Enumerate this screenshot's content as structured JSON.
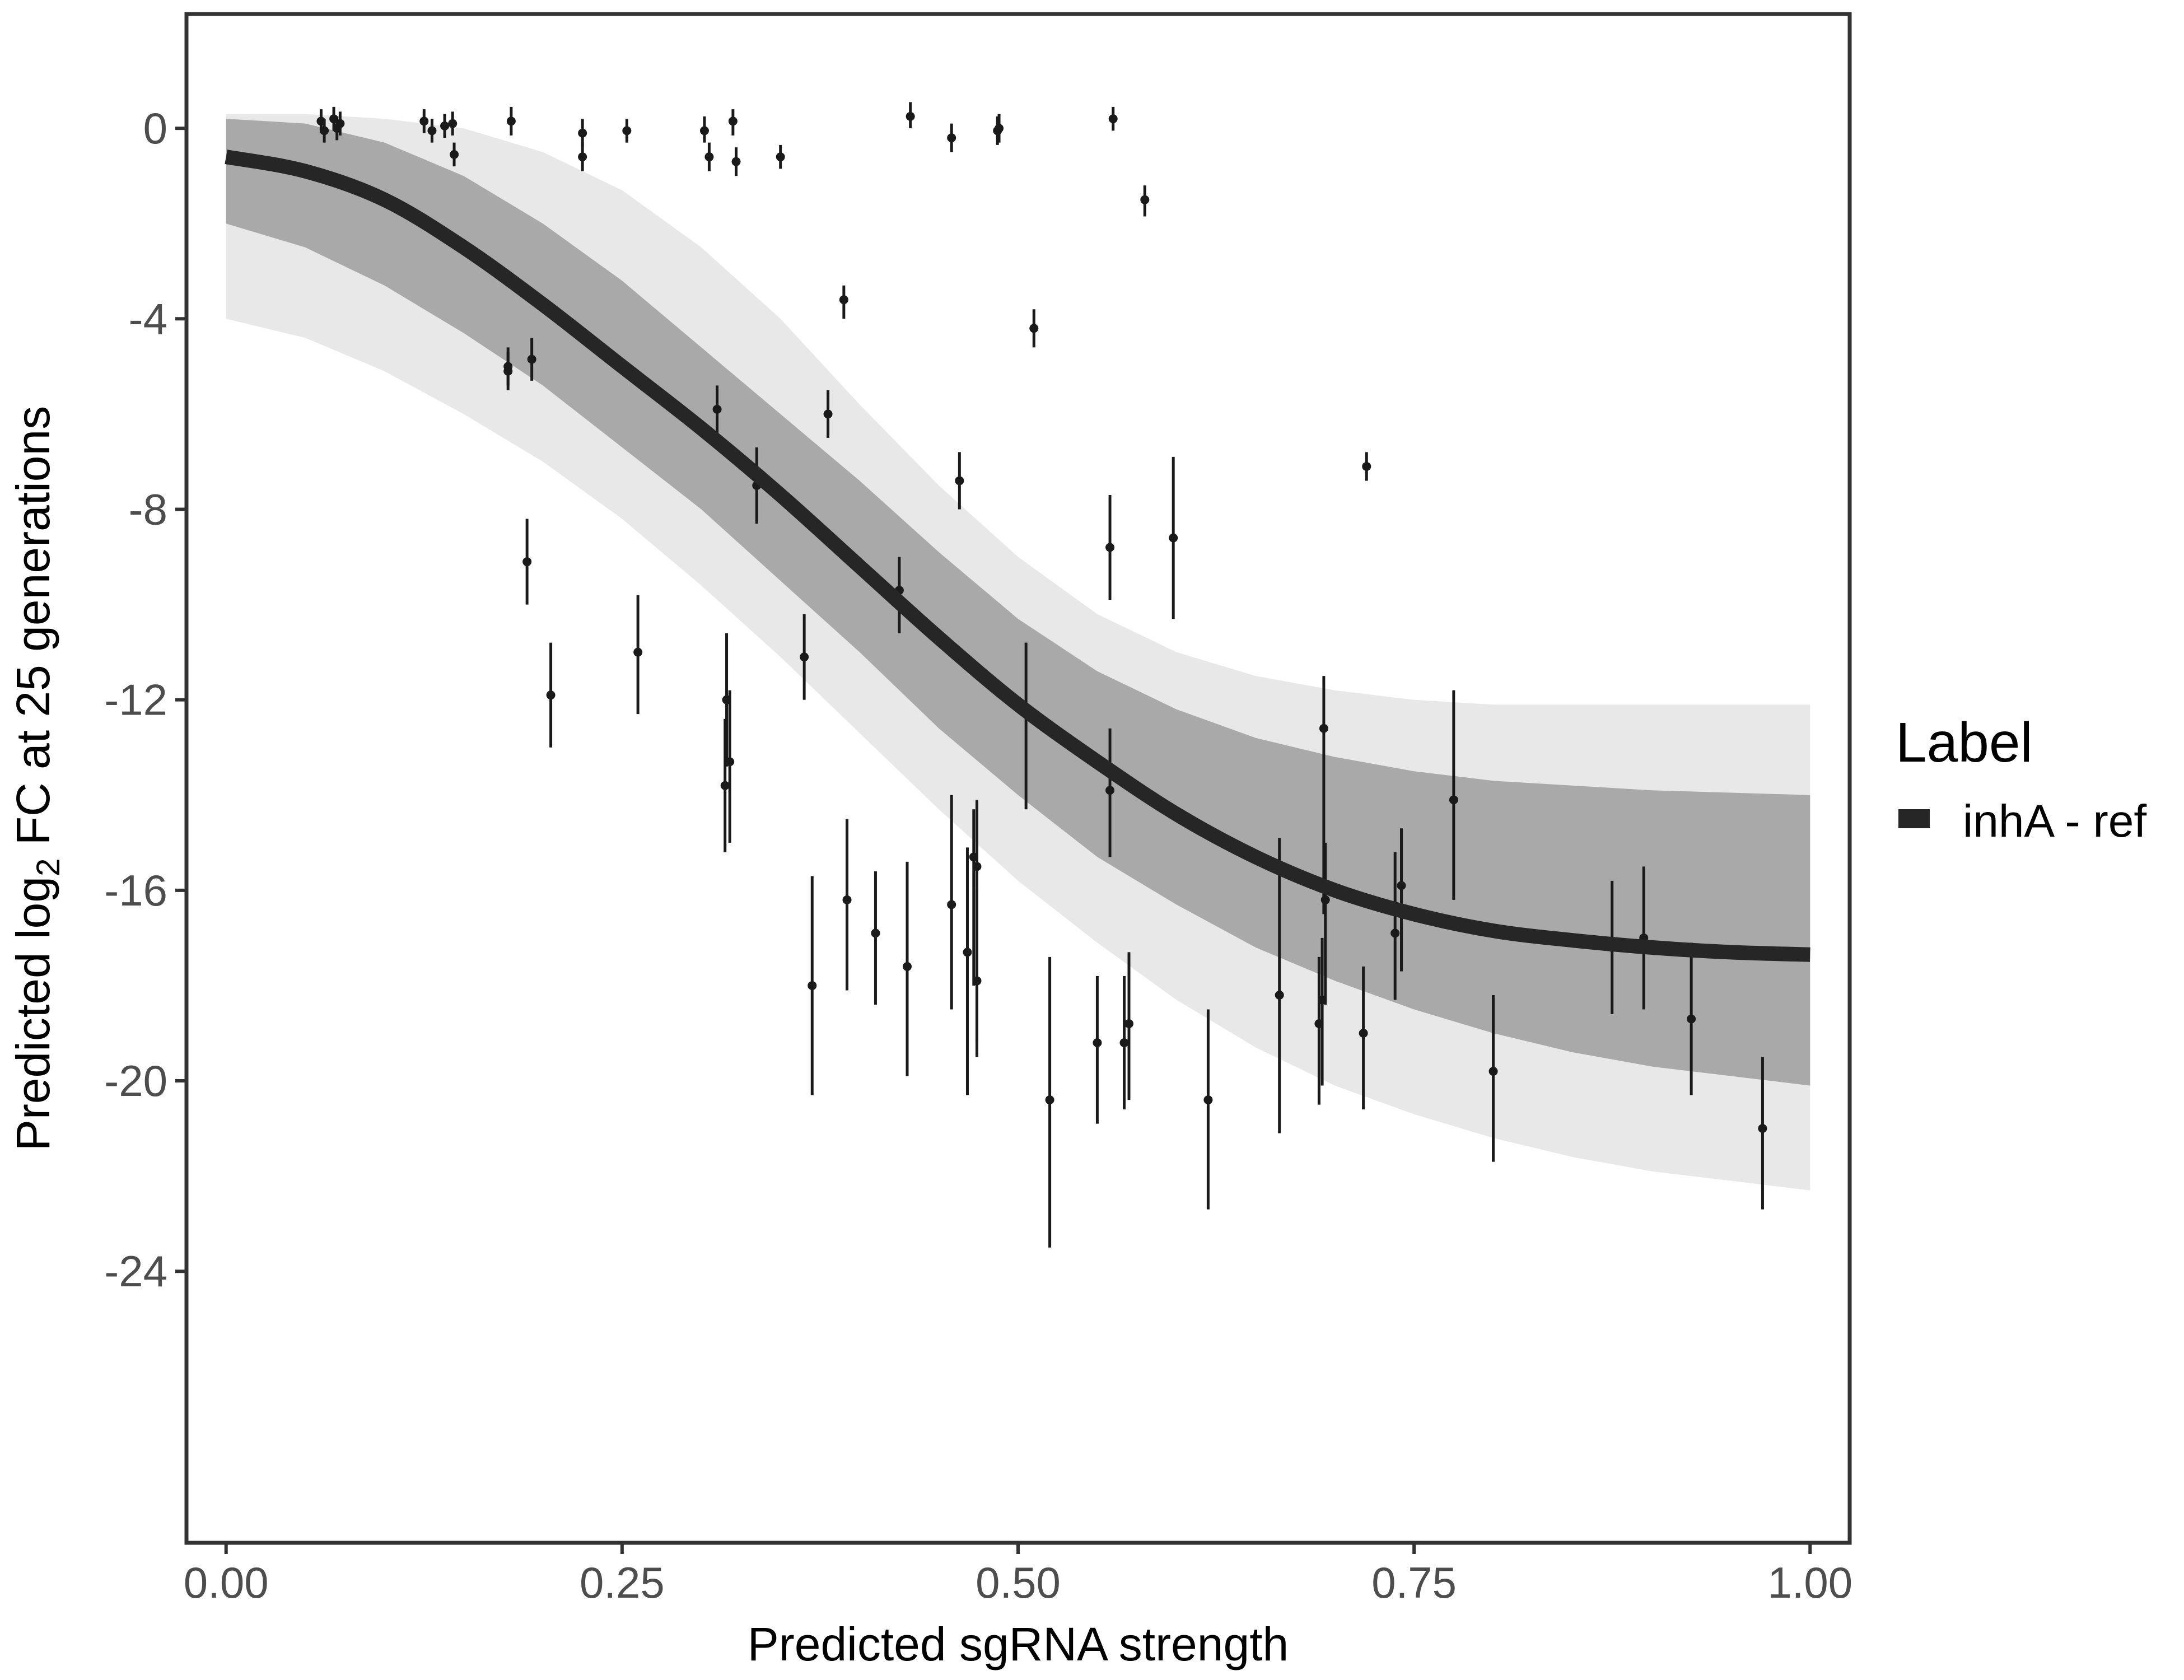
{
  "chart_data": {
    "type": "line",
    "xlabel": "Predicted sgRNA strength",
    "ylabel": {
      "prefix": "Predicted  log",
      "subscript": "2",
      "suffix": " FC at 25 generations"
    },
    "xlim": [
      -0.025,
      1.025
    ],
    "ylim": [
      -29.7,
      2.4
    ],
    "x_ticks": [
      0.0,
      0.25,
      0.5,
      0.75,
      1.0
    ],
    "x_tick_labels": [
      "0.00",
      "0.25",
      "0.50",
      "0.75",
      "1.00"
    ],
    "y_ticks": [
      0,
      -4,
      -8,
      -12,
      -16,
      -20,
      -24
    ],
    "y_tick_labels": [
      "0",
      "-4",
      "-8",
      "-12",
      "-16",
      "-20",
      "-24"
    ],
    "grid": false,
    "legend": {
      "title": "Label",
      "position": "right",
      "entries": [
        {
          "label": "inhA - ref",
          "color": "#262626"
        }
      ]
    },
    "fit_curve": {
      "name": "inhA - ref",
      "color": "#262626",
      "x": [
        0.0,
        0.05,
        0.1,
        0.15,
        0.2,
        0.25,
        0.3,
        0.35,
        0.4,
        0.45,
        0.5,
        0.55,
        0.6,
        0.65,
        0.7,
        0.75,
        0.8,
        0.85,
        0.9,
        0.95,
        1.0
      ],
      "y": [
        -0.6,
        -0.9,
        -1.5,
        -2.5,
        -3.7,
        -5.0,
        -6.3,
        -7.7,
        -9.2,
        -10.7,
        -12.1,
        -13.3,
        -14.4,
        -15.3,
        -16.0,
        -16.5,
        -16.85,
        -17.05,
        -17.2,
        -17.3,
        -17.35
      ]
    },
    "ribbon": {
      "color": "#a9a9a9",
      "x": [
        0.0,
        0.05,
        0.1,
        0.15,
        0.2,
        0.25,
        0.3,
        0.35,
        0.4,
        0.45,
        0.5,
        0.55,
        0.6,
        0.65,
        0.7,
        0.75,
        0.8,
        0.85,
        0.9,
        0.95,
        1.0
      ],
      "upper": [
        0.2,
        0.1,
        -0.3,
        -1.0,
        -2.0,
        -3.2,
        -4.6,
        -6.0,
        -7.4,
        -8.9,
        -10.3,
        -11.4,
        -12.2,
        -12.8,
        -13.2,
        -13.5,
        -13.7,
        -13.8,
        -13.9,
        -13.95,
        -14.0
      ],
      "lower": [
        -2.0,
        -2.5,
        -3.3,
        -4.3,
        -5.4,
        -6.7,
        -8.0,
        -9.5,
        -11.0,
        -12.6,
        -14.0,
        -15.3,
        -16.3,
        -17.2,
        -17.9,
        -18.5,
        -19.0,
        -19.4,
        -19.7,
        -19.9,
        -20.1
      ],
      "faint_upper": [
        0.3,
        0.3,
        0.2,
        0.0,
        -0.5,
        -1.3,
        -2.5,
        -4.0,
        -5.8,
        -7.5,
        -9.0,
        -10.2,
        -11.0,
        -11.5,
        -11.8,
        -12.0,
        -12.1,
        -12.1,
        -12.1,
        -12.1,
        -12.1
      ],
      "faint_lower": [
        -4.0,
        -4.4,
        -5.1,
        -6.0,
        -7.0,
        -8.2,
        -9.6,
        -11.1,
        -12.7,
        -14.3,
        -15.8,
        -17.1,
        -18.3,
        -19.3,
        -20.1,
        -20.7,
        -21.2,
        -21.6,
        -21.9,
        -22.1,
        -22.3
      ]
    },
    "points": [
      {
        "x": 0.06,
        "y": 0.15,
        "lo": -0.1,
        "hi": 0.4
      },
      {
        "x": 0.062,
        "y": -0.05,
        "lo": -0.3,
        "hi": 0.2
      },
      {
        "x": 0.068,
        "y": 0.2,
        "lo": -0.05,
        "hi": 0.45
      },
      {
        "x": 0.07,
        "y": 0.0,
        "lo": -0.25,
        "hi": 0.25
      },
      {
        "x": 0.072,
        "y": 0.1,
        "lo": -0.15,
        "hi": 0.35
      },
      {
        "x": 0.125,
        "y": 0.15,
        "lo": -0.1,
        "hi": 0.4
      },
      {
        "x": 0.13,
        "y": -0.05,
        "lo": -0.3,
        "hi": 0.2
      },
      {
        "x": 0.138,
        "y": 0.05,
        "lo": -0.2,
        "hi": 0.3
      },
      {
        "x": 0.143,
        "y": 0.1,
        "lo": -0.15,
        "hi": 0.35
      },
      {
        "x": 0.144,
        "y": -0.55,
        "lo": -0.8,
        "hi": -0.3
      },
      {
        "x": 0.18,
        "y": 0.15,
        "lo": -0.15,
        "hi": 0.45
      },
      {
        "x": 0.178,
        "y": -5.0,
        "lo": -5.4,
        "hi": -4.6
      },
      {
        "x": 0.178,
        "y": -5.1,
        "lo": -5.5,
        "hi": -4.7
      },
      {
        "x": 0.19,
        "y": -9.1,
        "lo": -10.0,
        "hi": -8.2
      },
      {
        "x": 0.193,
        "y": -4.85,
        "lo": -5.3,
        "hi": -4.4
      },
      {
        "x": 0.205,
        "y": -11.9,
        "lo": -13.0,
        "hi": -10.8
      },
      {
        "x": 0.225,
        "y": -0.1,
        "lo": -0.4,
        "hi": 0.2
      },
      {
        "x": 0.225,
        "y": -0.6,
        "lo": -0.9,
        "hi": -0.3
      },
      {
        "x": 0.253,
        "y": -0.05,
        "lo": -0.3,
        "hi": 0.2
      },
      {
        "x": 0.26,
        "y": -11.0,
        "lo": -12.3,
        "hi": -9.8
      },
      {
        "x": 0.302,
        "y": -0.05,
        "lo": -0.3,
        "hi": 0.25
      },
      {
        "x": 0.305,
        "y": -0.6,
        "lo": -0.9,
        "hi": -0.3
      },
      {
        "x": 0.31,
        "y": -5.9,
        "lo": -6.4,
        "hi": -5.4
      },
      {
        "x": 0.316,
        "y": -12.0,
        "lo": -13.4,
        "hi": -10.6
      },
      {
        "x": 0.315,
        "y": -13.8,
        "lo": -15.2,
        "hi": -12.4
      },
      {
        "x": 0.318,
        "y": -13.3,
        "lo": -15.0,
        "hi": -11.8
      },
      {
        "x": 0.32,
        "y": 0.15,
        "lo": -0.15,
        "hi": 0.4
      },
      {
        "x": 0.322,
        "y": -0.7,
        "lo": -1.0,
        "hi": -0.4
      },
      {
        "x": 0.335,
        "y": -7.5,
        "lo": -8.3,
        "hi": -6.7
      },
      {
        "x": 0.35,
        "y": -0.6,
        "lo": -0.85,
        "hi": -0.35
      },
      {
        "x": 0.365,
        "y": -11.1,
        "lo": -12.0,
        "hi": -10.2
      },
      {
        "x": 0.37,
        "y": -18.0,
        "lo": -20.3,
        "hi": -15.7
      },
      {
        "x": 0.38,
        "y": -6.0,
        "lo": -6.5,
        "hi": -5.5
      },
      {
        "x": 0.39,
        "y": -3.6,
        "lo": -4.0,
        "hi": -3.3
      },
      {
        "x": 0.392,
        "y": -16.2,
        "lo": -18.1,
        "hi": -14.5
      },
      {
        "x": 0.41,
        "y": -16.9,
        "lo": -18.4,
        "hi": -15.6
      },
      {
        "x": 0.425,
        "y": -9.7,
        "lo": -10.6,
        "hi": -9.0
      },
      {
        "x": 0.43,
        "y": -17.6,
        "lo": -19.9,
        "hi": -15.4
      },
      {
        "x": 0.432,
        "y": 0.25,
        "lo": 0.0,
        "hi": 0.55
      },
      {
        "x": 0.458,
        "y": -0.2,
        "lo": -0.5,
        "hi": 0.1
      },
      {
        "x": 0.458,
        "y": -16.3,
        "lo": -18.5,
        "hi": -14.0
      },
      {
        "x": 0.463,
        "y": -7.4,
        "lo": -8.0,
        "hi": -6.8
      },
      {
        "x": 0.468,
        "y": -17.3,
        "lo": -20.3,
        "hi": -15.1
      },
      {
        "x": 0.472,
        "y": -15.3,
        "lo": -18.0,
        "hi": -14.3
      },
      {
        "x": 0.474,
        "y": -15.5,
        "lo": -19.5,
        "hi": -14.1
      },
      {
        "x": 0.474,
        "y": -17.9,
        "lo": -19.2,
        "hi": -16.0
      },
      {
        "x": 0.487,
        "y": -0.05,
        "lo": -0.35,
        "hi": 0.25
      },
      {
        "x": 0.488,
        "y": 0.0,
        "lo": -0.3,
        "hi": 0.3
      },
      {
        "x": 0.505,
        "y": -12.2,
        "lo": -14.3,
        "hi": -10.8
      },
      {
        "x": 0.51,
        "y": -4.2,
        "lo": -4.6,
        "hi": -3.8
      },
      {
        "x": 0.52,
        "y": -20.4,
        "lo": -23.5,
        "hi": -17.4
      },
      {
        "x": 0.55,
        "y": -19.2,
        "lo": -20.9,
        "hi": -17.8
      },
      {
        "x": 0.558,
        "y": -8.8,
        "lo": -9.9,
        "hi": -7.7
      },
      {
        "x": 0.558,
        "y": -13.9,
        "lo": -15.3,
        "hi": -12.6
      },
      {
        "x": 0.56,
        "y": 0.2,
        "lo": -0.05,
        "hi": 0.45
      },
      {
        "x": 0.567,
        "y": -19.2,
        "lo": -20.6,
        "hi": -17.8
      },
      {
        "x": 0.57,
        "y": -18.8,
        "lo": -20.4,
        "hi": -17.3
      },
      {
        "x": 0.58,
        "y": -1.5,
        "lo": -1.85,
        "hi": -1.2
      },
      {
        "x": 0.598,
        "y": -8.6,
        "lo": -10.3,
        "hi": -6.9
      },
      {
        "x": 0.62,
        "y": -20.4,
        "lo": -22.7,
        "hi": -18.5
      },
      {
        "x": 0.665,
        "y": -18.2,
        "lo": -21.1,
        "hi": -14.9
      },
      {
        "x": 0.69,
        "y": -18.8,
        "lo": -20.5,
        "hi": -17.4
      },
      {
        "x": 0.692,
        "y": -18.3,
        "lo": -20.1,
        "hi": -17.0
      },
      {
        "x": 0.693,
        "y": -12.6,
        "lo": -16.5,
        "hi": -11.5
      },
      {
        "x": 0.694,
        "y": -16.2,
        "lo": -18.4,
        "hi": -15.0
      },
      {
        "x": 0.718,
        "y": -19.0,
        "lo": -20.6,
        "hi": -17.6
      },
      {
        "x": 0.72,
        "y": -7.1,
        "lo": -7.4,
        "hi": -6.8
      },
      {
        "x": 0.738,
        "y": -16.9,
        "lo": -18.3,
        "hi": -15.2
      },
      {
        "x": 0.742,
        "y": -15.9,
        "lo": -17.7,
        "hi": -14.7
      },
      {
        "x": 0.775,
        "y": -14.1,
        "lo": -16.2,
        "hi": -11.8
      },
      {
        "x": 0.8,
        "y": -19.8,
        "lo": -21.7,
        "hi": -18.2
      },
      {
        "x": 0.875,
        "y": -17.2,
        "lo": -18.6,
        "hi": -15.8
      },
      {
        "x": 0.895,
        "y": -17.0,
        "lo": -18.5,
        "hi": -15.5
      },
      {
        "x": 0.925,
        "y": -18.7,
        "lo": -20.3,
        "hi": -17.1
      },
      {
        "x": 0.97,
        "y": -21.0,
        "lo": -22.7,
        "hi": -19.5
      }
    ]
  }
}
